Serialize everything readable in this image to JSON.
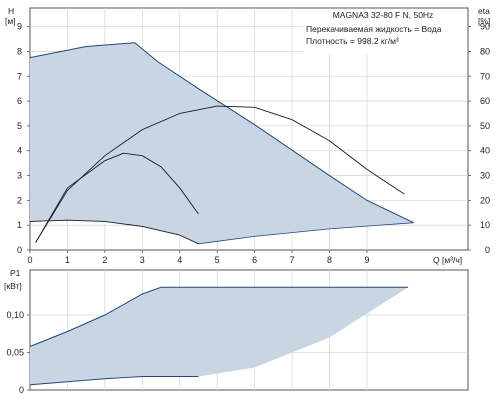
{
  "chart_data": [
    {
      "type": "line",
      "panel": "head_eta",
      "title": "MAGNA3 32-80 F N, 50Hz",
      "annotations": [
        "Перекачиваемая жидкость = Вода",
        "Плотность = 998.2 кг/м³"
      ],
      "xlabel": "Q [м³/ч]",
      "ylabel": "H",
      "ylabel_unit": "[м]",
      "y2label": "eta",
      "y2label_unit": "[%]",
      "xlim": [
        0,
        11.7
      ],
      "ylim": [
        0,
        9.75
      ],
      "y2lim": [
        0,
        97.5
      ],
      "x_ticks": [
        "0",
        "1",
        "2",
        "3",
        "4",
        "5",
        "6",
        "7",
        "8",
        "9"
      ],
      "y_ticks": [
        "0",
        "1",
        "2",
        "3",
        "4",
        "5",
        "6",
        "7",
        "8",
        "9"
      ],
      "y2_ticks": [
        "0",
        "10",
        "20",
        "30",
        "40",
        "50",
        "60",
        "70",
        "80",
        "90"
      ],
      "grid": true,
      "operating_range": {
        "upper": [
          [
            0,
            7.75
          ],
          [
            1.5,
            8.2
          ],
          [
            2.8,
            8.35
          ],
          [
            3.4,
            7.6
          ],
          [
            4.5,
            6.5
          ],
          [
            6.0,
            5.05
          ],
          [
            8.0,
            3.0
          ],
          [
            9.0,
            2.0
          ],
          [
            10.25,
            1.1
          ]
        ],
        "lower": [
          [
            4.5,
            0.25
          ],
          [
            6.0,
            0.55
          ],
          [
            8.0,
            0.85
          ],
          [
            10.25,
            1.1
          ]
        ],
        "min_curve": [
          [
            0,
            1.15
          ],
          [
            1.0,
            1.2
          ],
          [
            2.0,
            1.15
          ],
          [
            3.0,
            0.95
          ],
          [
            4.0,
            0.6
          ],
          [
            4.5,
            0.25
          ]
        ]
      },
      "series": [
        {
          "kind": "head_curve",
          "values": [
            [
              0,
              1.15
            ],
            [
              1.0,
              1.2
            ],
            [
              2.0,
              1.15
            ],
            [
              3.0,
              0.95
            ],
            [
              4.0,
              0.6
            ],
            [
              4.5,
              0.25
            ]
          ]
        },
        {
          "kind": "efficiency_curve",
          "values": [
            [
              0.15,
              0.3
            ],
            [
              1.0,
              2.5
            ],
            [
              2.0,
              3.6
            ],
            [
              2.5,
              3.9
            ],
            [
              3.0,
              3.8
            ],
            [
              3.5,
              3.35
            ],
            [
              4.0,
              2.5
            ],
            [
              4.5,
              1.45
            ]
          ]
        },
        {
          "kind": "efficiency_curve",
          "values": [
            [
              0.15,
              0.3
            ],
            [
              1.0,
              2.4
            ],
            [
              2.0,
              3.8
            ],
            [
              3.0,
              4.85
            ],
            [
              4.0,
              5.5
            ],
            [
              5.0,
              5.8
            ],
            [
              6.0,
              5.75
            ],
            [
              7.0,
              5.25
            ],
            [
              8.0,
              4.4
            ],
            [
              9.0,
              3.25
            ],
            [
              10.0,
              2.25
            ]
          ]
        }
      ]
    },
    {
      "type": "line",
      "panel": "power",
      "xlabel": "",
      "ylabel": "P1",
      "ylabel_unit": "[кВт]",
      "xlim": [
        0,
        11.7
      ],
      "ylim": [
        0,
        0.16
      ],
      "y_ticks": [
        "0",
        "0,05",
        "0,10"
      ],
      "grid": true,
      "operating_range": {
        "upper": [
          [
            0,
            0.058
          ],
          [
            1.0,
            0.078
          ],
          [
            2.0,
            0.1
          ],
          [
            3.0,
            0.128
          ],
          [
            3.5,
            0.137
          ],
          [
            10.1,
            0.137
          ]
        ],
        "lower": [
          [
            0,
            0.007
          ],
          [
            1.0,
            0.011
          ],
          [
            2.0,
            0.015
          ],
          [
            3.0,
            0.018
          ],
          [
            4.5,
            0.018
          ],
          [
            6.0,
            0.03
          ],
          [
            8.0,
            0.07
          ],
          [
            10.1,
            0.137
          ]
        ]
      },
      "series": []
    }
  ]
}
